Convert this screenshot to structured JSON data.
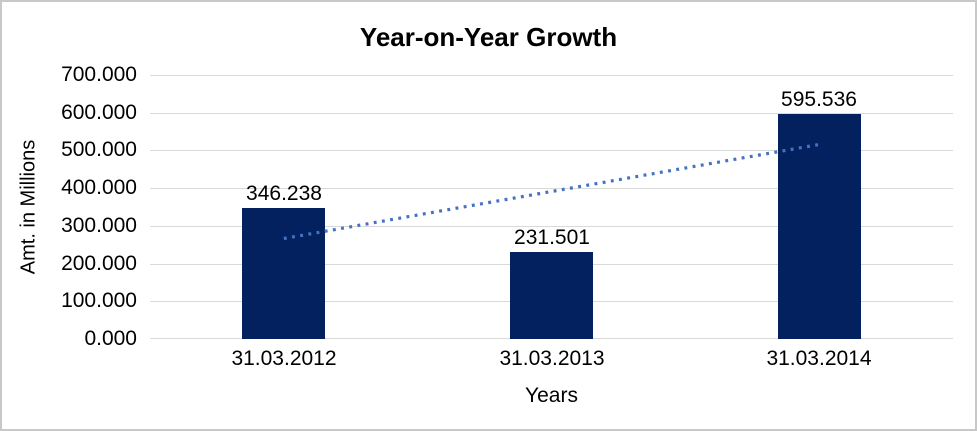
{
  "chart_data": {
    "type": "bar",
    "title": "Year-on-Year Growth",
    "xlabel": "Years",
    "ylabel": "Amt. in Millions",
    "categories": [
      "31.03.2012",
      "31.03.2013",
      "31.03.2014"
    ],
    "values": [
      346.238,
      231.501,
      595.536
    ],
    "value_labels": [
      "346.238",
      "231.501",
      "595.536"
    ],
    "ylim": [
      0,
      700
    ],
    "ytick_step": 100,
    "ytick_labels": [
      "0.000",
      "100.000",
      "200.000",
      "300.000",
      "400.000",
      "500.000",
      "600.000",
      "700.000"
    ],
    "grid": true,
    "legend": false,
    "trendline": {
      "type": "linear",
      "style": "dotted",
      "visible": true
    },
    "colors": {
      "bar": "#02215E",
      "trendline": "#4472C4",
      "gridline": "#D9D9D9",
      "text": "#000000",
      "frame_border": "#C8C8C8",
      "background": "#FFFFFF"
    }
  }
}
